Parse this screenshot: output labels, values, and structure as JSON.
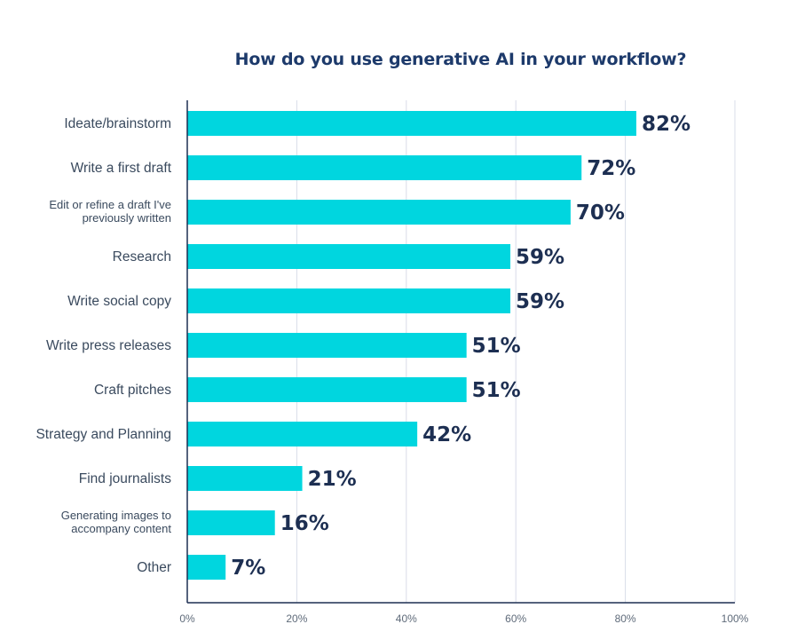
{
  "chart_data": {
    "type": "bar",
    "orientation": "horizontal",
    "title": "How do you use generative AI in your workflow?",
    "categories": [
      "Ideate/brainstorm",
      "Write a first draft",
      [
        "Edit or refine a draft I've",
        "previously written"
      ],
      "Research",
      "Write social copy",
      "Write press releases",
      "Craft pitches",
      "Strategy and Planning",
      "Find journalists",
      [
        "Generating images to",
        "accompany content"
      ],
      "Other"
    ],
    "values": [
      82,
      72,
      70,
      59,
      59,
      51,
      51,
      42,
      21,
      16,
      7
    ],
    "value_labels": [
      "82%",
      "72%",
      "70%",
      "59%",
      "59%",
      "51%",
      "51%",
      "42%",
      "21%",
      "16%",
      "7%"
    ],
    "xlim": [
      0,
      100
    ],
    "x_ticks": [
      0,
      20,
      40,
      60,
      80,
      100
    ],
    "x_tick_labels": [
      "0%",
      "20%",
      "40%",
      "60%",
      "80%",
      "100%"
    ],
    "grid": "vertical",
    "legend": "none",
    "colors": {
      "bar": "#00d6df",
      "value_text": "#1d2f52",
      "title": "#1d3a6b",
      "grid": "#d8dce8",
      "axis": "#1d2f52"
    }
  }
}
